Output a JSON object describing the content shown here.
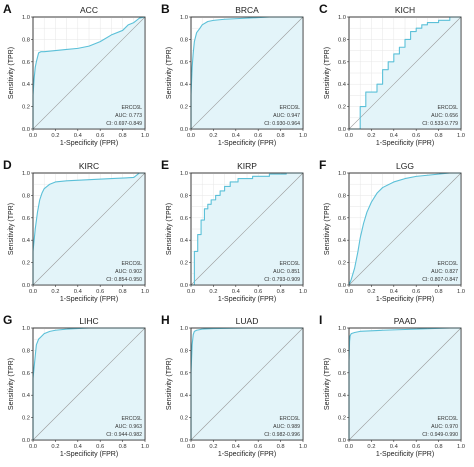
{
  "colors": {
    "roc": "#5bc0d8",
    "fill": "#e3f4f9",
    "grid": "#e6e6e6",
    "diagonal": "#9a9a9a"
  },
  "chart_data": [
    {
      "type": "line",
      "letter": "A",
      "title": "ACC",
      "xlabel": "1-Specificity (FPR)",
      "ylabel": "Sensitivity (TPR)",
      "xlim": [
        0,
        1
      ],
      "ylim": [
        0,
        1
      ],
      "ticks": [
        "0.0",
        "0.2",
        "0.4",
        "0.6",
        "0.8",
        "1.0"
      ],
      "legend": "bottom-right",
      "series_name": "ERCC6L",
      "auc_text": "AUC: 0.773",
      "ci_text": "CI: 0.697-0.849",
      "x": [
        0,
        0,
        0.01,
        0.02,
        0.03,
        0.05,
        0.07,
        0.1,
        0.2,
        0.3,
        0.4,
        0.5,
        0.6,
        0.7,
        0.8,
        0.85,
        0.9,
        0.95,
        1
      ],
      "y": [
        0,
        0.3,
        0.45,
        0.55,
        0.6,
        0.68,
        0.69,
        0.69,
        0.7,
        0.71,
        0.72,
        0.74,
        0.78,
        0.84,
        0.88,
        0.93,
        0.95,
        0.99,
        1
      ]
    },
    {
      "type": "line",
      "letter": "B",
      "title": "BRCA",
      "xlabel": "1-Specificity (FPR)",
      "ylabel": "Sensitivity (TPR)",
      "xlim": [
        0,
        1
      ],
      "ylim": [
        0,
        1
      ],
      "ticks": [
        "0.0",
        "0.2",
        "0.4",
        "0.6",
        "0.8",
        "1.0"
      ],
      "legend": "bottom-right",
      "series_name": "ERCC6L",
      "auc_text": "AUC: 0.947",
      "ci_text": "CI: 0.930-0.964",
      "x": [
        0,
        0,
        0.01,
        0.02,
        0.03,
        0.05,
        0.08,
        0.1,
        0.15,
        0.2,
        0.3,
        0.5,
        0.7,
        1
      ],
      "y": [
        0,
        0.3,
        0.55,
        0.68,
        0.78,
        0.86,
        0.9,
        0.93,
        0.96,
        0.97,
        0.98,
        0.99,
        1,
        1
      ]
    },
    {
      "type": "line",
      "letter": "C",
      "title": "KICH",
      "xlabel": "1-Specificity (FPR)",
      "ylabel": "Sensitivity (TPR)",
      "xlim": [
        0,
        1
      ],
      "ylim": [
        0,
        1
      ],
      "ticks": [
        "0.0",
        "0.2",
        "0.4",
        "0.6",
        "0.8",
        "1.0"
      ],
      "legend": "bottom-right",
      "series_name": "ERCC6L",
      "auc_text": "AUC: 0.656",
      "ci_text": "CI: 0.533-0.779",
      "x": [
        0,
        0.1,
        0.1,
        0.15,
        0.15,
        0.25,
        0.25,
        0.3,
        0.3,
        0.35,
        0.35,
        0.4,
        0.4,
        0.45,
        0.45,
        0.5,
        0.5,
        0.55,
        0.55,
        0.6,
        0.6,
        0.65,
        0.65,
        0.7,
        0.7,
        0.8,
        0.8,
        0.9,
        0.9,
        1
      ],
      "y": [
        0,
        0,
        0.2,
        0.2,
        0.33,
        0.33,
        0.4,
        0.4,
        0.53,
        0.53,
        0.6,
        0.6,
        0.67,
        0.67,
        0.73,
        0.73,
        0.8,
        0.8,
        0.87,
        0.87,
        0.9,
        0.9,
        0.93,
        0.93,
        0.95,
        0.95,
        0.97,
        0.97,
        1,
        1
      ]
    },
    {
      "type": "line",
      "letter": "D",
      "title": "KIRC",
      "xlabel": "1-Specificity (FPR)",
      "ylabel": "Sensitivity (TPR)",
      "xlim": [
        0,
        1
      ],
      "ylim": [
        0,
        1
      ],
      "ticks": [
        "0.0",
        "0.2",
        "0.4",
        "0.6",
        "0.8",
        "1.0"
      ],
      "legend": "bottom-right",
      "series_name": "ERCC6L",
      "auc_text": "AUC: 0.902",
      "ci_text": "CI: 0.854-0.950",
      "x": [
        0,
        0,
        0.02,
        0.04,
        0.06,
        0.08,
        0.1,
        0.15,
        0.2,
        0.3,
        0.5,
        0.7,
        0.9,
        0.95,
        1
      ],
      "y": [
        0,
        0.3,
        0.5,
        0.65,
        0.76,
        0.82,
        0.86,
        0.9,
        0.92,
        0.93,
        0.94,
        0.95,
        0.96,
        1,
        1
      ]
    },
    {
      "type": "line",
      "letter": "E",
      "title": "KIRP",
      "xlabel": "1-Specificity (FPR)",
      "ylabel": "Sensitivity (TPR)",
      "xlim": [
        0,
        1
      ],
      "ylim": [
        0,
        1
      ],
      "ticks": [
        "0.0",
        "0.2",
        "0.4",
        "0.6",
        "0.8",
        "1.0"
      ],
      "legend": "bottom-right",
      "series_name": "ERCC6L",
      "auc_text": "AUC: 0.851",
      "ci_text": "CI: 0.793-0.909",
      "x": [
        0,
        0.03,
        0.03,
        0.06,
        0.06,
        0.09,
        0.09,
        0.12,
        0.12,
        0.15,
        0.15,
        0.18,
        0.18,
        0.22,
        0.22,
        0.26,
        0.26,
        0.3,
        0.3,
        0.35,
        0.35,
        0.42,
        0.42,
        0.55,
        0.55,
        0.7,
        0.7,
        0.85,
        0.85,
        1
      ],
      "y": [
        0,
        0,
        0.3,
        0.3,
        0.45,
        0.45,
        0.58,
        0.58,
        0.68,
        0.68,
        0.72,
        0.72,
        0.76,
        0.76,
        0.8,
        0.8,
        0.84,
        0.84,
        0.88,
        0.88,
        0.92,
        0.92,
        0.95,
        0.95,
        0.97,
        0.97,
        0.99,
        0.99,
        1,
        1
      ]
    },
    {
      "type": "line",
      "letter": "F",
      "title": "LGG",
      "xlabel": "1-Specificity (FPR)",
      "ylabel": "Sensitivity (TPR)",
      "xlim": [
        0,
        1
      ],
      "ylim": [
        0,
        1
      ],
      "ticks": [
        "0.0",
        "0.2",
        "0.4",
        "0.6",
        "0.8",
        "1.0"
      ],
      "legend": "bottom-right",
      "series_name": "ERCC6L",
      "auc_text": "AUC: 0.827",
      "ci_text": "CI: 0.807-0.847",
      "x": [
        0,
        0.02,
        0.05,
        0.08,
        0.1,
        0.13,
        0.16,
        0.2,
        0.25,
        0.3,
        0.4,
        0.5,
        0.6,
        0.7,
        0.8,
        0.9,
        1
      ],
      "y": [
        0,
        0.05,
        0.15,
        0.3,
        0.42,
        0.55,
        0.65,
        0.74,
        0.82,
        0.87,
        0.92,
        0.95,
        0.97,
        0.98,
        0.99,
        1,
        1
      ]
    },
    {
      "type": "line",
      "letter": "G",
      "title": "LIHC",
      "xlabel": "1-Specificity (FPR)",
      "ylabel": "Sensitivity (TPR)",
      "xlim": [
        0,
        1
      ],
      "ylim": [
        0,
        1
      ],
      "ticks": [
        "0.0",
        "0.2",
        "0.4",
        "0.6",
        "0.8",
        "1.0"
      ],
      "legend": "bottom-right",
      "series_name": "ERCC6L",
      "auc_text": "AUC: 0.963",
      "ci_text": "CI: 0.944-0.982",
      "x": [
        0,
        0,
        0.02,
        0.03,
        0.05,
        0.07,
        0.1,
        0.15,
        0.2,
        0.3,
        0.5,
        1
      ],
      "y": [
        0,
        0.55,
        0.75,
        0.85,
        0.9,
        0.92,
        0.95,
        0.97,
        0.98,
        0.99,
        1,
        1
      ]
    },
    {
      "type": "line",
      "letter": "H",
      "title": "LUAD",
      "xlabel": "1-Specificity (FPR)",
      "ylabel": "Sensitivity (TPR)",
      "xlim": [
        0,
        1
      ],
      "ylim": [
        0,
        1
      ],
      "ticks": [
        "0.0",
        "0.2",
        "0.4",
        "0.6",
        "0.8",
        "1.0"
      ],
      "legend": "bottom-right",
      "series_name": "ERCC6L",
      "auc_text": "AUC: 0.989",
      "ci_text": "CI: 0.982-0.996",
      "x": [
        0,
        0,
        0.01,
        0.02,
        0.03,
        0.05,
        0.1,
        0.2,
        0.5,
        1
      ],
      "y": [
        0,
        0.6,
        0.85,
        0.94,
        0.97,
        0.98,
        0.99,
        0.995,
        1,
        1
      ]
    },
    {
      "type": "line",
      "letter": "I",
      "title": "PAAD",
      "xlabel": "1-Specificity (FPR)",
      "ylabel": "Sensitivity (TPR)",
      "xlim": [
        0,
        1
      ],
      "ylim": [
        0,
        1
      ],
      "ticks": [
        "0.0",
        "0.2",
        "0.4",
        "0.6",
        "0.8",
        "1.0"
      ],
      "legend": "bottom-right",
      "series_name": "ERCC6L",
      "auc_text": "AUC: 0.970",
      "ci_text": "CI: 0.949-0.990",
      "x": [
        0,
        0,
        0.005,
        0.01,
        0.02,
        0.05,
        0.1,
        0.3,
        0.6,
        0.9,
        1
      ],
      "y": [
        0,
        0.7,
        0.88,
        0.93,
        0.95,
        0.96,
        0.97,
        0.98,
        0.99,
        1,
        1
      ]
    }
  ]
}
